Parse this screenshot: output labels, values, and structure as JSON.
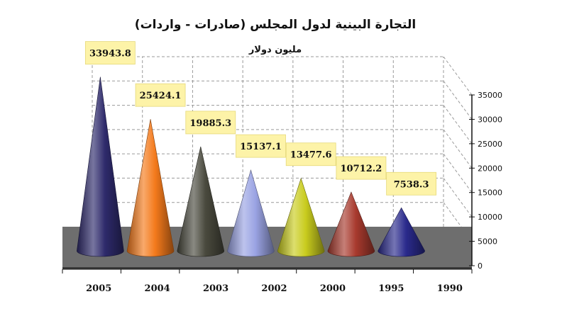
{
  "chart_data": {
    "type": "bar",
    "title": "التجارة البينية لدول المجلس (صادرات - واردات)",
    "subtitle": "مليون دولار",
    "categories": [
      "2005",
      "2004",
      "2003",
      "2002",
      "2000",
      "1995",
      "1990"
    ],
    "values": [
      33943.8,
      25424.1,
      19885.3,
      15137.1,
      13477.6,
      10712.2,
      7538.3
    ],
    "value_labels": [
      "33943.8",
      "25424.1",
      "19885.3",
      "15137.1",
      "13477.6",
      "10712.2",
      "7538.3"
    ],
    "colors": [
      "#2e2a6b",
      "#f47a1c",
      "#4a4a3e",
      "#9aa3e3",
      "#c9cc1e",
      "#a83a2e",
      "#2a2a8c"
    ],
    "ylim": [
      0,
      35000
    ],
    "yticks": [
      "0",
      "5000",
      "10000",
      "15000",
      "20000",
      "25000",
      "30000",
      "35000"
    ],
    "grid": true,
    "shape": "cone"
  }
}
